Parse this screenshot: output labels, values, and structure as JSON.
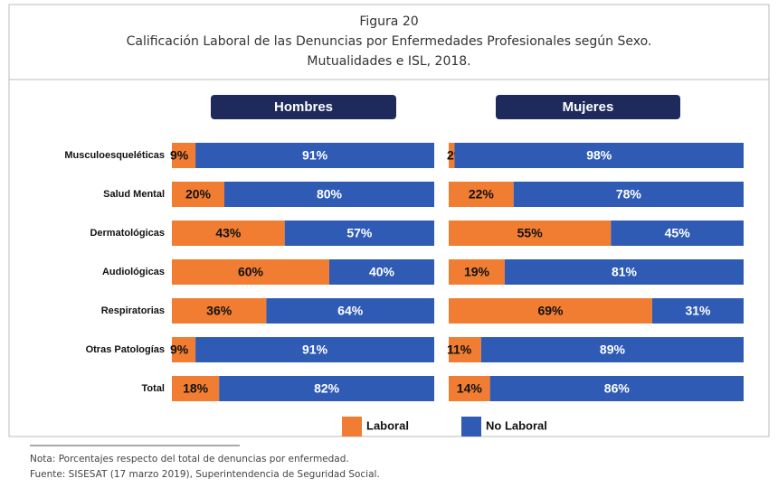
{
  "figure": {
    "label": "Figura 20",
    "title": "Calificación Laboral de las Denuncias por Enfermedades Profesionales según Sexo.",
    "subtitle": "Mutualidades e ISL, 2018."
  },
  "chart_data": [
    {
      "type": "stacked-bar-horizontal",
      "title": "Hombres",
      "categories": [
        "Musculoesqueléticas",
        "Salud Mental",
        "Dermatológicas",
        "Audiológicas",
        "Respiratorias",
        "Otras Patologías",
        "Total"
      ],
      "xlim": [
        0,
        100
      ],
      "series": [
        {
          "name": "Laboral",
          "color": "#f07d32",
          "values": [
            9,
            20,
            43,
            60,
            36,
            9,
            18
          ],
          "value_labels": [
            "9%",
            "20%",
            "43%",
            "60%",
            "36%",
            "9%",
            "18%"
          ]
        },
        {
          "name": "No Laboral",
          "color": "#2f5bb5",
          "values": [
            91,
            80,
            57,
            40,
            64,
            91,
            82
          ],
          "value_labels": [
            "91%",
            "80%",
            "57%",
            "40%",
            "64%",
            "91%",
            "82%"
          ]
        }
      ]
    },
    {
      "type": "stacked-bar-horizontal",
      "title": "Mujeres",
      "xlim": [
        0,
        100
      ],
      "series": [
        {
          "name": "Laboral",
          "color": "#f07d32",
          "values": [
            2,
            22,
            55,
            19,
            69,
            11,
            14
          ],
          "value_labels": [
            "2%",
            "22%",
            "55%",
            "19%",
            "69%",
            "11%",
            "14%"
          ]
        },
        {
          "name": "No Laboral",
          "color": "#2f5bb5",
          "values": [
            98,
            78,
            45,
            81,
            31,
            89,
            86
          ],
          "value_labels": [
            "98%",
            "78%",
            "45%",
            "81%",
            "31%",
            "89%",
            "86%"
          ]
        }
      ]
    }
  ],
  "notes": [
    "Nota: Porcentajes respecto del total de denuncias por enfermedad.",
    "Fuente: SISESAT (17 marzo 2019), Superintendencia de Seguridad Social."
  ]
}
